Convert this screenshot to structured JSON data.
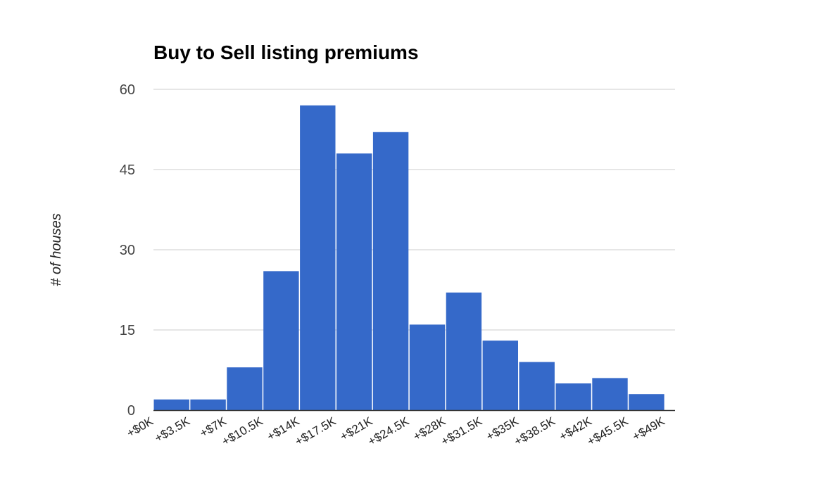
{
  "chart_data": {
    "type": "bar",
    "title": "Buy to Sell listing premiums",
    "xlabel": "",
    "ylabel": "# of houses",
    "ylim": [
      0,
      60
    ],
    "y_ticks": [
      "0",
      "15",
      "30",
      "45",
      "60"
    ],
    "grid": true,
    "legend": "none",
    "bar_color": "#3569c9",
    "bin_edges": [
      "+$0K",
      "+$3.5K",
      "+$7K",
      "+$10.5K",
      "+$14K",
      "+$17.5K",
      "+$21K",
      "+$24.5K",
      "+$28K",
      "+$31.5K",
      "+$35K",
      "+$38.5K",
      "+$42K",
      "+$45.5K",
      "+$49K"
    ],
    "values": [
      2,
      2,
      8,
      26,
      57,
      48,
      52,
      16,
      22,
      13,
      9,
      5,
      6,
      3
    ]
  }
}
